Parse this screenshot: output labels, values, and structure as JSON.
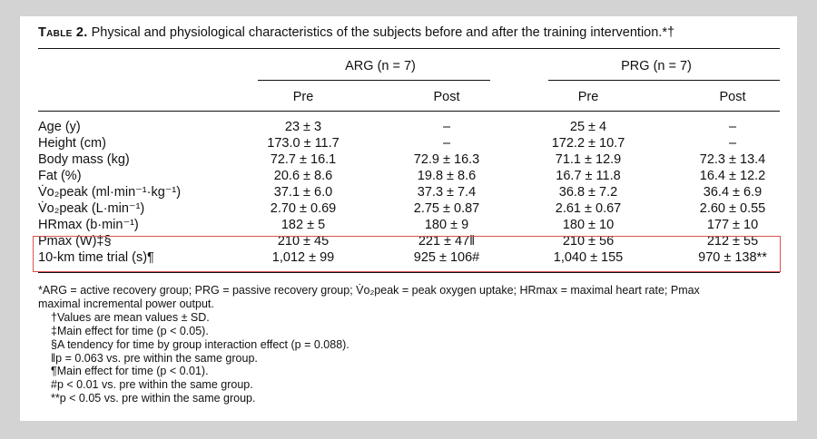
{
  "caption": {
    "label": "Table 2.",
    "text": "Physical and physiological characteristics of the subjects before and after the training intervention.*†"
  },
  "groups": [
    {
      "name": "ARG",
      "n_label": "(n = 7)"
    },
    {
      "name": "PRG",
      "n_label": "(n = 7)"
    }
  ],
  "subheaders": [
    "Pre",
    "Post",
    "Pre",
    "Post"
  ],
  "rows": [
    {
      "label": "Age (y)",
      "cells": [
        "23 ± 3",
        "–",
        "25 ± 4",
        "–"
      ]
    },
    {
      "label": "Height (cm)",
      "cells": [
        "173.0 ± 11.7",
        "–",
        "172.2 ± 10.7",
        "–"
      ]
    },
    {
      "label": "Body mass (kg)",
      "cells": [
        "72.7 ± 16.1",
        "72.9 ± 16.3",
        "71.1 ± 12.9",
        "72.3 ± 13.4"
      ]
    },
    {
      "label": "Fat (%)",
      "cells": [
        "20.6 ± 8.6",
        "19.8 ± 8.6",
        "16.7 ± 11.8",
        "16.4 ± 12.2"
      ]
    },
    {
      "label": "V̇o₂peak (ml·min⁻¹·kg⁻¹)",
      "cells": [
        "37.1 ± 6.0",
        "37.3 ± 7.4",
        "36.8 ± 7.2",
        "36.4 ± 6.9"
      ]
    },
    {
      "label": "V̇o₂peak (L·min⁻¹)",
      "cells": [
        "2.70 ± 0.69",
        "2.75 ± 0.87",
        "2.61 ± 0.67",
        "2.60 ± 0.55"
      ]
    },
    {
      "label": "HRmax (b·min⁻¹)",
      "cells": [
        "182 ± 5",
        "180 ± 9",
        "180 ± 10",
        "177 ± 10"
      ]
    },
    {
      "label": "Pmax (W)‡§",
      "cells": [
        "210 ± 45",
        "221 ± 47‖",
        "210 ± 56",
        "212 ± 55"
      ]
    },
    {
      "label": "10-km time trial (s)¶",
      "cells": [
        "1,012 ± 99",
        "925 ± 106#",
        "1,040 ± 155",
        "970 ± 138**"
      ]
    }
  ],
  "footnotes": [
    "*ARG = active recovery group; PRG = passive recovery group; V̇o₂peak = peak oxygen uptake; HRmax = maximal heart rate; Pmax",
    "maximal incremental power output.",
    "†Values are mean values ± SD.",
    "‡Main effect for time (p < 0.05).",
    "§A tendency for time by group interaction effect (p = 0.088).",
    "‖p = 0.063 vs. pre within the same group.",
    "¶Main effect for time (p < 0.01).",
    "#p < 0.01 vs. pre within the same group.",
    "**p < 0.05 vs. pre within the same group."
  ],
  "colors": {
    "highlight_border": "#d9534f",
    "background": "#d3d3d3"
  }
}
